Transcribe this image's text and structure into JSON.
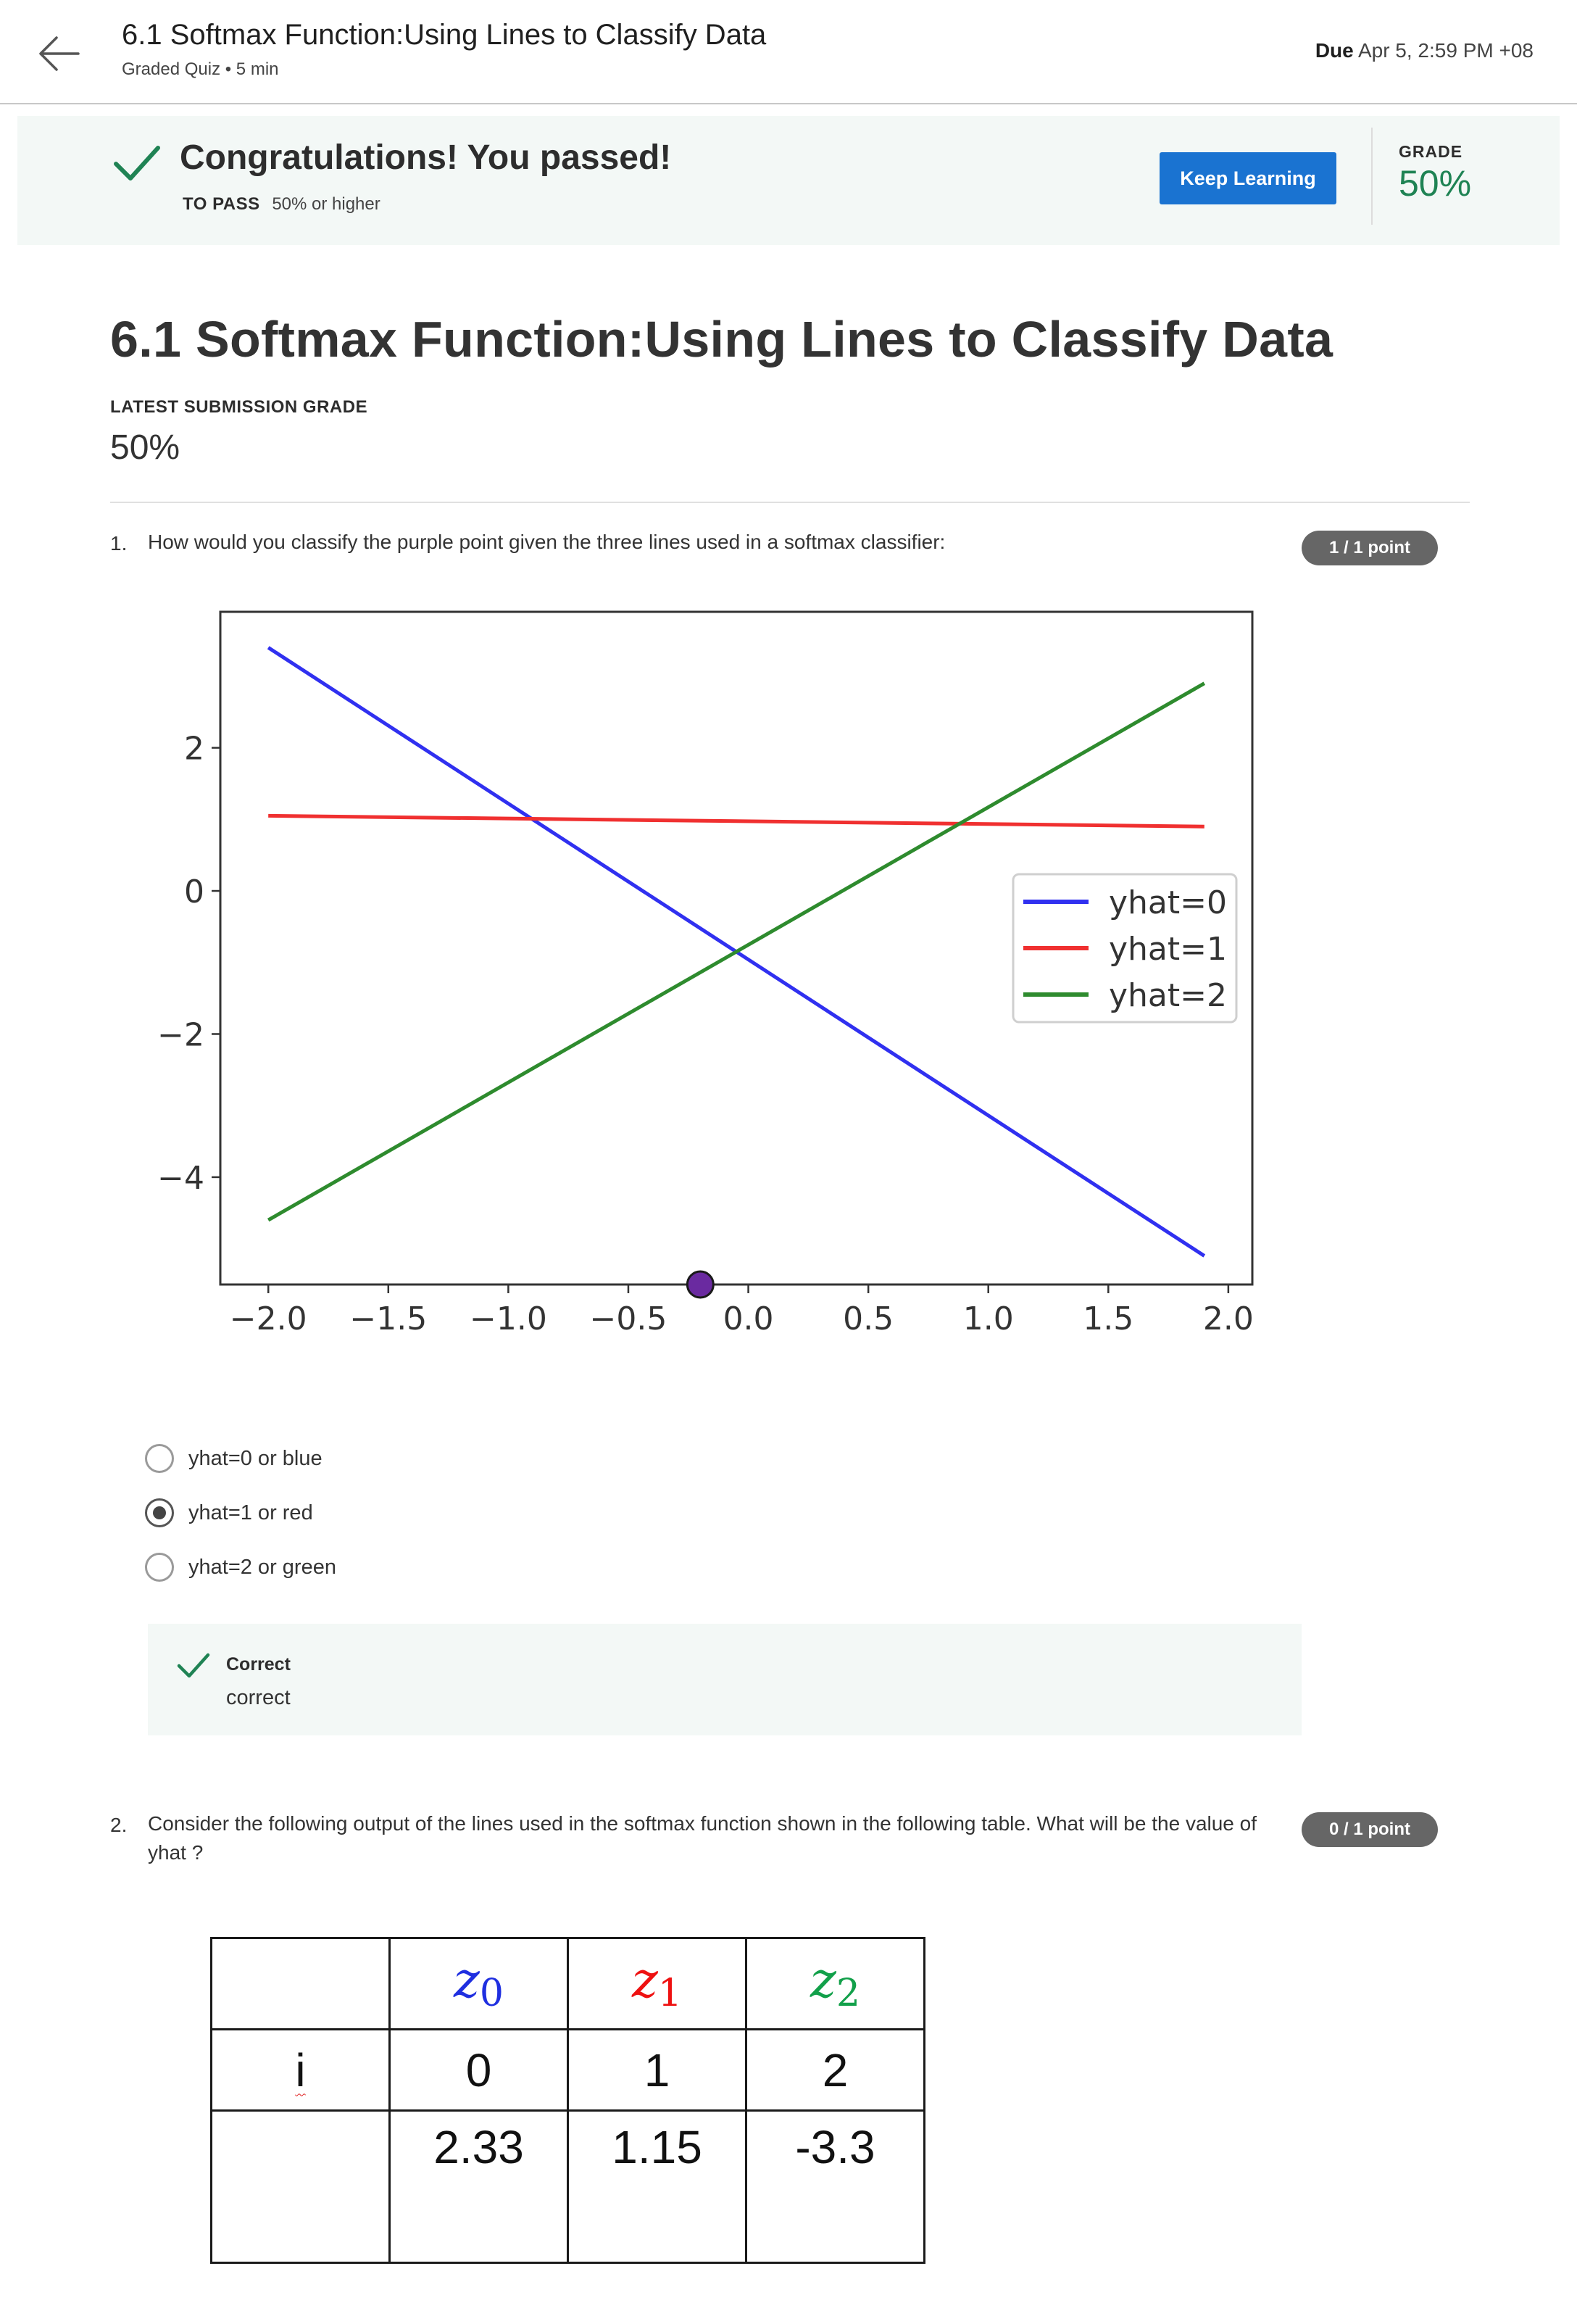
{
  "header": {
    "title": "6.1 Softmax Function:Using Lines to Classify Data",
    "subtitle": "Graded Quiz • 5 min",
    "due_label": "Due",
    "due_value": "Apr 5, 2:59 PM +08"
  },
  "banner": {
    "title": "Congratulations! You passed!",
    "to_pass_label": "TO PASS",
    "to_pass_value": "50% or higher",
    "button_label": "Keep Learning",
    "grade_label": "GRADE",
    "grade_value": "50%"
  },
  "main": {
    "title": "6.1 Softmax Function:Using Lines to Classify Data",
    "latest_grade_label": "LATEST SUBMISSION GRADE",
    "latest_grade_value": "50%"
  },
  "questions": [
    {
      "number": "1.",
      "text": "How would you classify the purple point given the three lines used in a softmax classifier:",
      "points": "1 / 1 point",
      "options": [
        {
          "label": "yhat=0 or blue",
          "selected": false
        },
        {
          "label": "yhat=1 or red",
          "selected": true
        },
        {
          "label": "yhat=2 or green",
          "selected": false
        }
      ],
      "feedback_title": "Correct",
      "feedback_text": "correct"
    },
    {
      "number": "2.",
      "text": "Consider the following output of the lines used in the softmax function shown in the following table. What will be the value of yhat ?",
      "points": "0 / 1 point",
      "table": {
        "row1": [
          "",
          "z",
          "z",
          "z"
        ],
        "row1_subs": [
          "",
          "0",
          "1",
          "2"
        ],
        "row2": [
          "i",
          "0",
          "1",
          "2"
        ],
        "row3": [
          "",
          "2.33",
          "1.15",
          "-3.3"
        ]
      }
    }
  ],
  "chart_data": {
    "type": "line",
    "title": "",
    "xlabel": "",
    "ylabel": "",
    "xlim": [
      -2.2,
      2.1
    ],
    "ylim": [
      -5.5,
      3.9
    ],
    "xticks": [
      -2.0,
      -1.5,
      -1.0,
      -0.5,
      0.0,
      0.5,
      1.0,
      1.5,
      2.0
    ],
    "xtick_labels": [
      "−2.0",
      "−1.5",
      "−1.0",
      "−0.5",
      "0.0",
      "0.5",
      "1.0",
      "1.5",
      "2.0"
    ],
    "yticks": [
      2,
      0,
      -2,
      -4
    ],
    "ytick_labels": [
      "2",
      "0",
      "−2",
      "−4"
    ],
    "grid": false,
    "legend_position": "center-right",
    "series": [
      {
        "name": "yhat=0",
        "color": "#3030f0",
        "x": [
          -2.0,
          1.9
        ],
        "y": [
          3.4,
          -5.1
        ]
      },
      {
        "name": "yhat=1",
        "color": "#f03030",
        "x": [
          -2.0,
          1.9
        ],
        "y": [
          1.05,
          0.9
        ]
      },
      {
        "name": "yhat=2",
        "color": "#2e8b2e",
        "x": [
          -2.0,
          1.9
        ],
        "y": [
          -4.6,
          2.9
        ]
      }
    ],
    "point": {
      "x": -0.2,
      "y": -5.5,
      "color": "#6a2aa0"
    }
  }
}
